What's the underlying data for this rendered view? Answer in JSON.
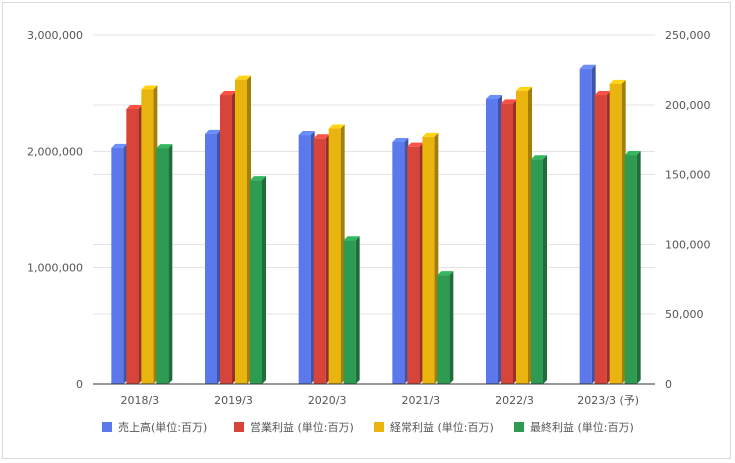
{
  "chart_data": {
    "type": "bar",
    "title": "",
    "categories": [
      "2018/3",
      "2019/3",
      "2020/3",
      "2021/3",
      "2022/3",
      "2023/3 (予)"
    ],
    "series": [
      {
        "name": "売上高(単位:百万)",
        "axis": "left",
        "color": "#5b78ec",
        "values": [
          2030000,
          2150000,
          2140000,
          2080000,
          2450000,
          2710000
        ]
      },
      {
        "name": "営業利益 (単位:百万)",
        "axis": "right",
        "color": "#d7453a",
        "values": [
          197000,
          207000,
          176000,
          170000,
          201000,
          207000
        ]
      },
      {
        "name": "経常利益 (単位:百万)",
        "axis": "right",
        "color": "#eab40f",
        "values": [
          211000,
          218000,
          183000,
          177000,
          210000,
          215000
        ]
      },
      {
        "name": "最終利益 (単位:百万)",
        "axis": "right",
        "color": "#2d9b52",
        "values": [
          169000,
          146000,
          103000,
          78000,
          161000,
          164000
        ]
      }
    ],
    "y_left": {
      "range": [
        0,
        3000000
      ],
      "ticks": [
        "0",
        "1,000,000",
        "2,000,000",
        "3,000,000"
      ],
      "tick_values": [
        0,
        1000000,
        2000000,
        3000000
      ]
    },
    "y_right": {
      "range": [
        0,
        250000
      ],
      "ticks": [
        "0",
        "50,000",
        "100,000",
        "150,000",
        "200,000",
        "250,000"
      ],
      "tick_values": [
        0,
        50000,
        100000,
        150000,
        200000,
        250000
      ]
    },
    "legend_position": "bottom",
    "grid": true
  }
}
